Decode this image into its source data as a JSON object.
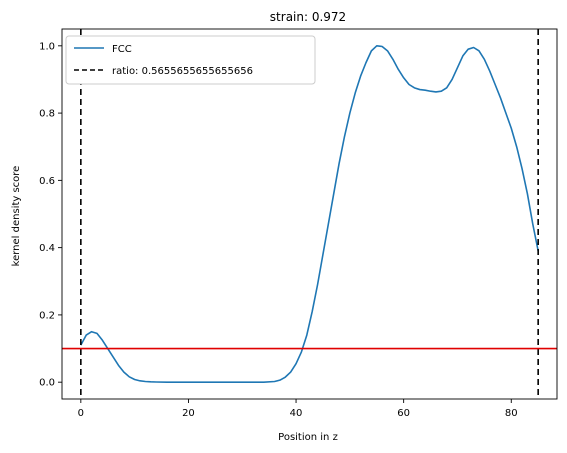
{
  "chart_data": {
    "type": "line",
    "title": "strain: 0.972",
    "xlabel": "Position in z",
    "ylabel": "kernel density score",
    "xlim": [
      -3.5,
      88.5
    ],
    "ylim": [
      -0.05,
      1.05
    ],
    "x_ticks": [
      0,
      20,
      40,
      60,
      80
    ],
    "y_ticks": [
      0.0,
      0.2,
      0.4,
      0.6,
      0.8,
      1.0
    ],
    "x_tick_labels": [
      "0",
      "20",
      "40",
      "60",
      "80"
    ],
    "y_tick_labels": [
      "0.0",
      "0.2",
      "0.4",
      "0.6",
      "0.8",
      "1.0"
    ],
    "grid": false,
    "legend_position": "top-left",
    "series": [
      {
        "name": "FCC",
        "color": "#1f77b4",
        "style": "solid",
        "x": [
          0,
          1,
          2,
          3,
          4,
          5,
          6,
          7,
          8,
          9,
          10,
          11,
          12,
          13,
          14,
          16,
          20,
          25,
          30,
          34,
          36,
          37,
          38,
          39,
          40,
          41,
          42,
          43,
          44,
          45,
          46,
          47,
          48,
          49,
          50,
          51,
          52,
          53,
          54,
          55,
          56,
          57,
          58,
          59,
          60,
          61,
          62,
          63,
          64,
          65,
          66,
          67,
          68,
          69,
          70,
          71,
          72,
          73,
          74,
          75,
          76,
          77,
          78,
          79,
          80,
          81,
          82,
          83,
          84,
          85
        ],
        "y": [
          0.11,
          0.14,
          0.15,
          0.145,
          0.125,
          0.1,
          0.075,
          0.05,
          0.03,
          0.016,
          0.008,
          0.004,
          0.002,
          0.001,
          0.0005,
          0.0,
          0.0,
          0.0,
          0.0,
          0.0,
          0.002,
          0.006,
          0.015,
          0.03,
          0.055,
          0.09,
          0.14,
          0.21,
          0.29,
          0.38,
          0.47,
          0.56,
          0.65,
          0.73,
          0.8,
          0.86,
          0.91,
          0.95,
          0.985,
          1.0,
          0.998,
          0.985,
          0.96,
          0.93,
          0.905,
          0.885,
          0.875,
          0.87,
          0.868,
          0.865,
          0.863,
          0.865,
          0.875,
          0.9,
          0.935,
          0.97,
          0.99,
          0.995,
          0.985,
          0.96,
          0.925,
          0.885,
          0.845,
          0.8,
          0.755,
          0.7,
          0.635,
          0.56,
          0.47,
          0.39
        ]
      },
      {
        "name": "ratio: 0.5655655655655656",
        "color": "#000000",
        "style": "dashed",
        "vertical_lines_x": [
          0,
          85
        ]
      },
      {
        "color": "#e00000",
        "style": "solid",
        "horizontal_line_y": 0.1
      }
    ]
  }
}
